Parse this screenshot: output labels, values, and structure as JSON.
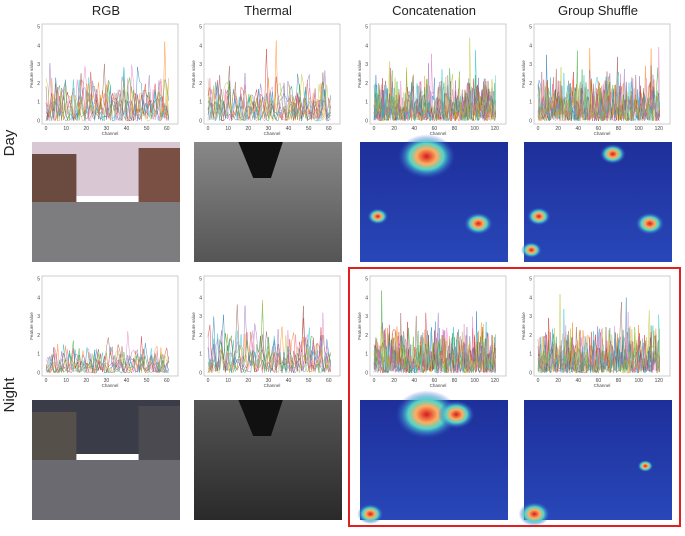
{
  "header": {
    "columns": [
      "RGB",
      "Thermal",
      "Concatenation",
      "Group Shuffle"
    ]
  },
  "rows": [
    "Day",
    "Night"
  ],
  "plots": {
    "y_label": "Feature value",
    "x_label": "Channel",
    "yticks": [
      0,
      1,
      2,
      3,
      4,
      5
    ],
    "xticks_narrow": [
      0,
      10,
      20,
      30,
      40,
      50,
      60
    ],
    "xticks_wide": [
      0,
      20,
      40,
      60,
      80,
      100,
      120
    ]
  }
}
